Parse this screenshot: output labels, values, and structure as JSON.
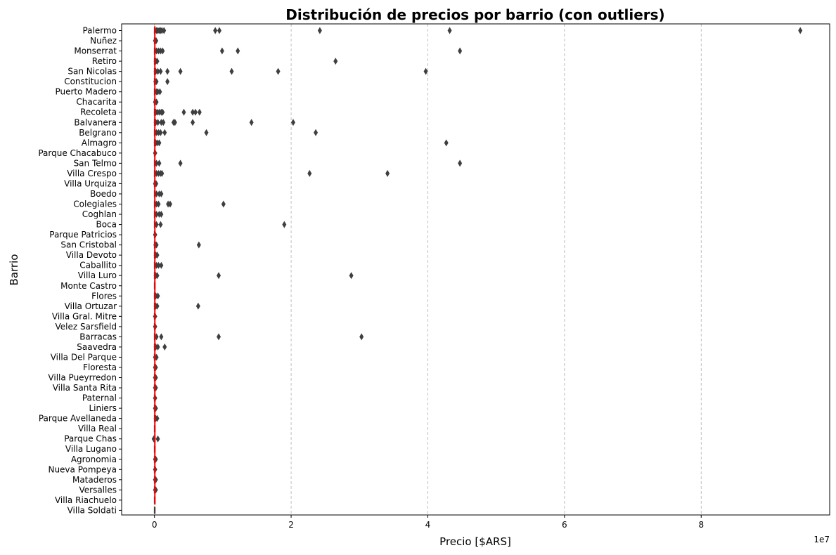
{
  "chart_data": {
    "type": "box",
    "orientation": "horizontal",
    "title": "Distribución de precios por barrio (con outliers)",
    "xlabel": "Precio [$ARS]",
    "ylabel": "Barrio",
    "x_offset_text": "1e7",
    "x_scale_factor": 10000000,
    "xlim": [
      -4800000,
      98800000
    ],
    "xticks": [
      0,
      20000000,
      40000000,
      60000000,
      80000000
    ],
    "xtick_labels": [
      "0",
      "2",
      "4",
      "6",
      "8"
    ],
    "grid": "x dashed",
    "median_line_color": "#ff0000",
    "box_color": "#3f3f3f",
    "outlier_color": "#3f3f3f",
    "categories": [
      "Palermo",
      "Nuñez",
      "Monserrat",
      "Retiro",
      "San Nicolas",
      "Constitucion",
      "Puerto Madero",
      "Chacarita",
      "Recoleta",
      "Balvanera",
      "Belgrano",
      "Almagro",
      "Parque Chacabuco",
      "San Telmo",
      "Villa Crespo",
      "Villa Urquiza",
      "Boedo",
      "Colegiales",
      "Coghlan",
      "Boca",
      "Parque Patricios",
      "San Cristobal",
      "Villa Devoto",
      "Caballito",
      "Villa Luro",
      "Monte Castro",
      "Flores",
      "Villa Ortuzar",
      "Villa Gral. Mitre",
      "Velez Sarsfield",
      "Barracas",
      "Saavedra",
      "Villa Del Parque",
      "Floresta",
      "Villa Pueyrredon",
      "Villa Santa Rita",
      "Paternal",
      "Liniers",
      "Parque Avellaneda",
      "Villa Real",
      "Parque Chas",
      "Villa Lugano",
      "Agronomia",
      "Nueva Pompeya",
      "Mataderos",
      "Versalles",
      "Villa Riachuelo",
      "Villa Soldati"
    ],
    "outliers": [
      [
        300000,
        500000,
        700000,
        900000,
        1100000,
        1400000,
        8900000,
        9500000,
        24200000,
        43200000,
        94500000
      ],
      [
        100000,
        250000
      ],
      [
        300000,
        600000,
        900000,
        1200000,
        9900000,
        12200000,
        44700000
      ],
      [
        200000,
        400000,
        26500000
      ],
      [
        200000,
        500000,
        900000,
        1900000,
        3800000,
        11300000,
        18100000,
        39700000
      ],
      [
        150000,
        300000,
        1900000
      ],
      [
        300000,
        500000,
        800000
      ],
      [
        100000,
        300000
      ],
      [
        200000,
        400000,
        700000,
        1000000,
        1200000,
        4300000,
        5600000,
        6000000,
        6600000
      ],
      [
        200000,
        500000,
        1000000,
        1300000,
        2800000,
        3000000,
        5600000,
        14200000,
        20300000
      ],
      [
        300000,
        600000,
        900000,
        1500000,
        7600000,
        23600000
      ],
      [
        200000,
        400000,
        700000,
        42700000
      ],
      [
        100000
      ],
      [
        300000,
        700000,
        3800000,
        44700000
      ],
      [
        300000,
        600000,
        900000,
        1100000,
        22700000,
        34100000
      ],
      [
        100000,
        250000
      ],
      [
        300000,
        700000,
        1000000
      ],
      [
        300000,
        600000,
        2000000,
        2300000,
        10100000
      ],
      [
        300000,
        700000,
        1000000
      ],
      [
        300000,
        900000,
        19000000
      ],
      [
        100000
      ],
      [
        150000,
        300000,
        6500000
      ],
      [
        200000,
        400000
      ],
      [
        300000,
        600000,
        1000000
      ],
      [
        200000,
        400000,
        9400000,
        28800000
      ],
      [],
      [
        200000,
        500000
      ],
      [
        200000,
        400000,
        6400000
      ],
      [
        100000
      ],
      [
        100000
      ],
      [
        300000,
        1000000,
        9400000,
        30300000
      ],
      [
        200000,
        500000,
        1500000
      ],
      [
        100000,
        300000
      ],
      [
        100000,
        200000
      ],
      [
        100000,
        200000
      ],
      [
        100000,
        200000
      ],
      [
        100000
      ],
      [
        100000,
        200000
      ],
      [
        200000,
        400000
      ],
      [],
      [
        -100000,
        500000
      ],
      [],
      [
        100000,
        200000
      ],
      [
        100000
      ],
      [
        100000,
        200000
      ],
      [
        100000,
        200000
      ],
      [],
      []
    ]
  }
}
